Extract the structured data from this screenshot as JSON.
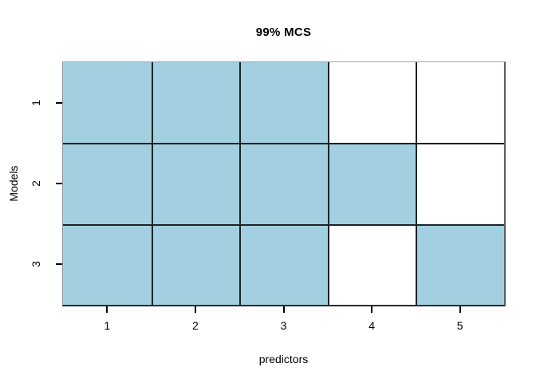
{
  "title": "99% MCS",
  "x_axis": {
    "label": "predictors",
    "ticks": [
      "1",
      "2",
      "3",
      "4",
      "5"
    ]
  },
  "y_axis": {
    "label": "Models",
    "ticks": [
      "1",
      "2",
      "3"
    ]
  },
  "colors": {
    "cell_filled": "#a3d0e0",
    "cell_empty": "#ffffff",
    "inner_grid_line": "#1c2226",
    "tick": "#000000",
    "text": "#000000",
    "background": "#ffffff"
  },
  "chart_data": {
    "type": "heatmap",
    "title": "99% MCS",
    "xlabel": "predictors",
    "ylabel": "Models",
    "x_ticks": [
      1,
      2,
      3,
      4,
      5
    ],
    "y_ticks": [
      1,
      2,
      3
    ],
    "matrix_rows_top_to_bottom": [
      [
        1,
        1,
        1,
        0,
        0
      ],
      [
        1,
        1,
        1,
        1,
        0
      ],
      [
        1,
        1,
        1,
        0,
        1
      ]
    ],
    "cell_value_colors": {
      "1": "#a3d0e0",
      "0": "#ffffff"
    },
    "legend_position": "none",
    "grid": "black cell separator lines, gray outer box"
  }
}
